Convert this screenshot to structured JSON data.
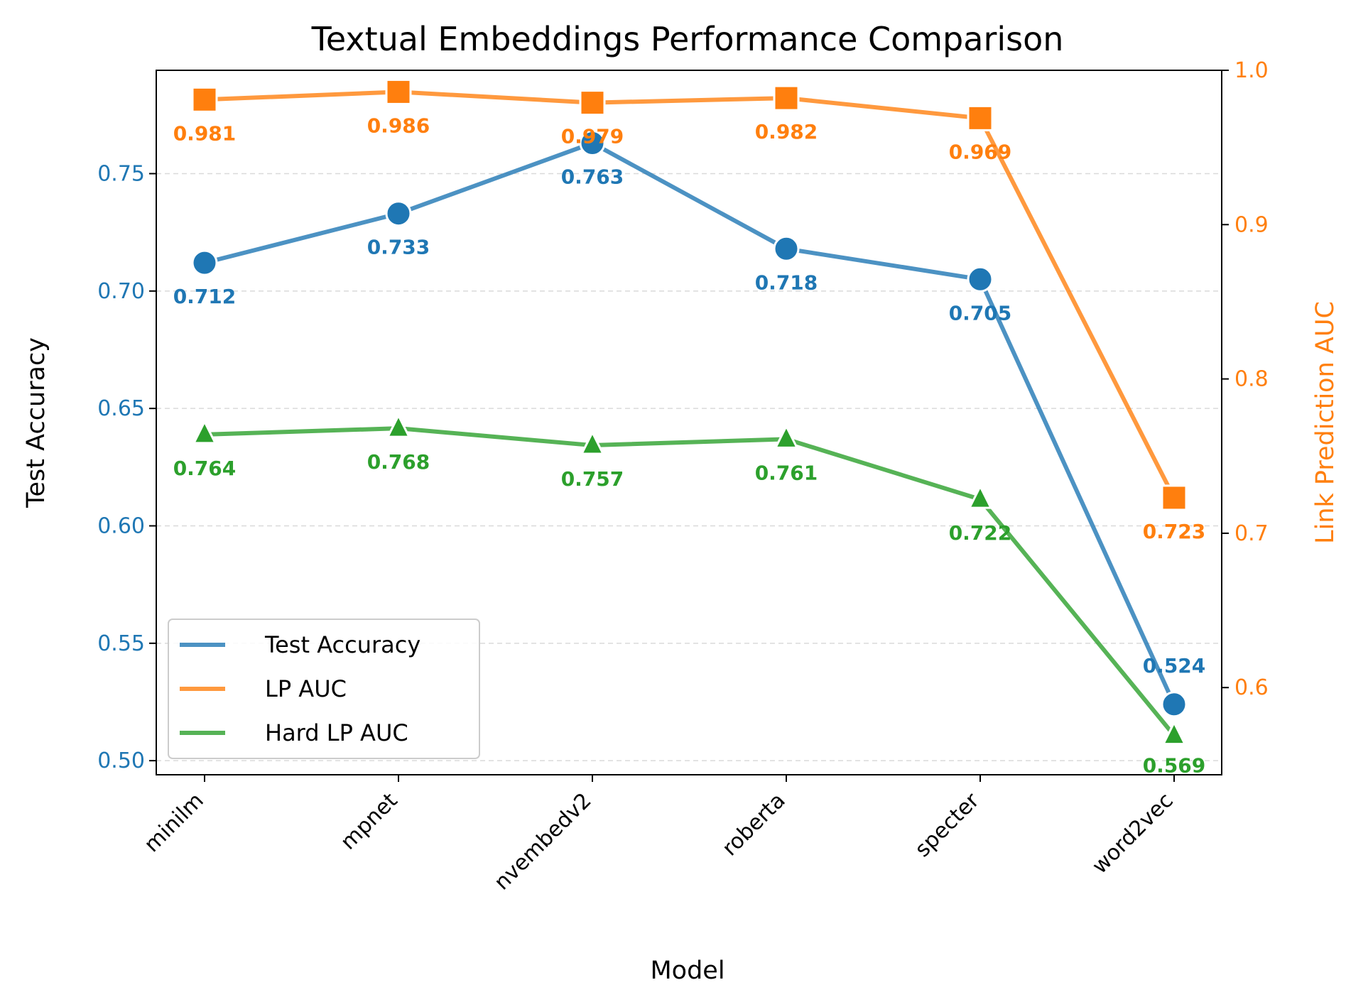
{
  "chart_data": {
    "type": "line",
    "title": "Textual Embeddings Performance Comparison",
    "xlabel": "Model",
    "ylabel_left": "Test Accuracy",
    "ylabel_right": "Link Prediction AUC",
    "categories": [
      "minilm",
      "mpnet",
      "nvembedv2",
      "roberta",
      "specter",
      "word2vec"
    ],
    "left_axis": {
      "range": [
        0.494,
        0.794
      ],
      "ticks": [
        0.5,
        0.55,
        0.6,
        0.65,
        0.7,
        0.75
      ],
      "tick_labels": [
        "0.50",
        "0.55",
        "0.60",
        "0.65",
        "0.70",
        "0.75"
      ],
      "color": "#1f77b4"
    },
    "right_axis": {
      "range": [
        0.5435,
        1.0
      ],
      "ticks": [
        0.6,
        0.7,
        0.8,
        0.9,
        1.0
      ],
      "tick_labels": [
        "0.6",
        "0.7",
        "0.8",
        "0.9",
        "1.0"
      ],
      "color": "#ff7f0e"
    },
    "grid": "horizontal dashed",
    "legend_position": "lower-left",
    "series": [
      {
        "name": "Test Accuracy",
        "axis": "left",
        "marker": "circle",
        "color": "#1f77b4",
        "values": [
          0.712,
          0.733,
          0.763,
          0.718,
          0.705,
          0.524
        ],
        "labels": [
          "0.712",
          "0.733",
          "0.763",
          "0.718",
          "0.705",
          "0.524"
        ]
      },
      {
        "name": "LP AUC",
        "axis": "right",
        "marker": "square",
        "color": "#ff7f0e",
        "values": [
          0.981,
          0.986,
          0.979,
          0.982,
          0.969,
          0.723
        ],
        "labels": [
          "0.981",
          "0.986",
          "0.979",
          "0.982",
          "0.969",
          "0.723"
        ]
      },
      {
        "name": "Hard LP AUC",
        "axis": "right",
        "marker": "triangle",
        "color": "#2ca02c",
        "values": [
          0.764,
          0.768,
          0.757,
          0.761,
          0.722,
          0.569
        ],
        "labels": [
          "0.764",
          "0.768",
          "0.757",
          "0.761",
          "0.722",
          "0.569"
        ]
      }
    ]
  }
}
